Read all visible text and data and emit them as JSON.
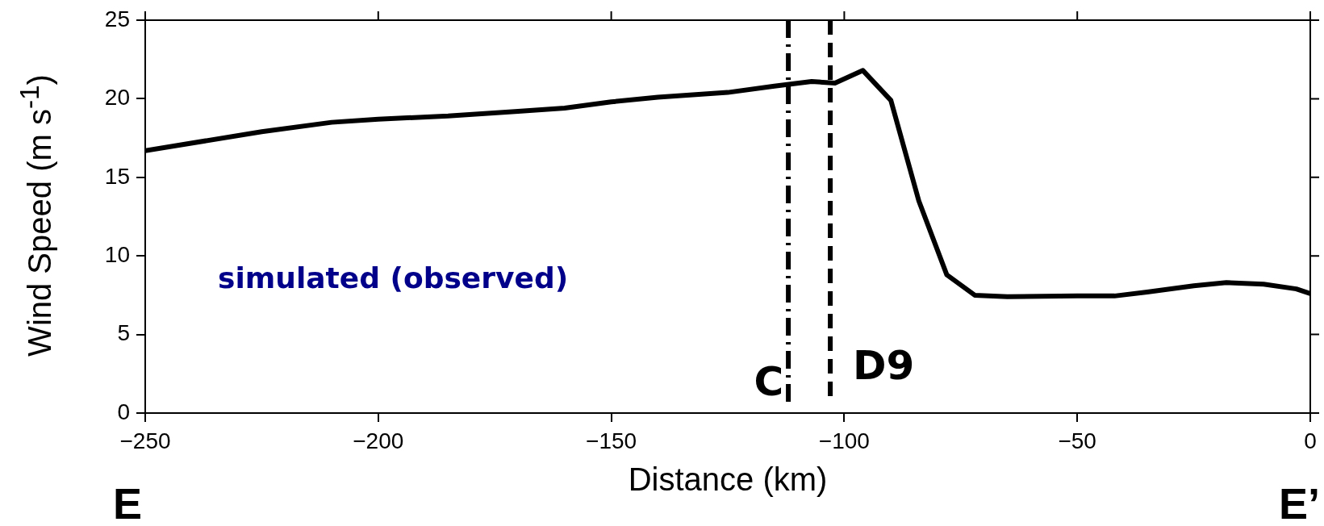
{
  "chart_data": {
    "type": "line",
    "xlabel": "Distance (km)",
    "ylabel": "Wind Speed (m s$^{-1}$)",
    "xlim": [
      -250,
      0
    ],
    "xticks": [
      -250,
      -200,
      -150,
      -100,
      -50,
      0
    ],
    "ylim": [
      0,
      25
    ],
    "yticks": [
      0,
      5,
      10,
      15,
      20,
      25
    ],
    "grid": false,
    "legend": false,
    "marker": "none",
    "line_style": "solid",
    "series": [
      {
        "color": "#000000",
        "x": [
          -250,
          -225,
          -210,
          -200,
          -185,
          -170,
          -160,
          -150,
          -140,
          -125,
          -115,
          -107,
          -102,
          -96,
          -90,
          -84,
          -78,
          -72,
          -65,
          -50,
          -42,
          -35,
          -25,
          -18,
          -10,
          -3,
          0
        ],
        "values": [
          16.7,
          17.9,
          18.5,
          18.7,
          18.9,
          19.2,
          19.4,
          19.8,
          20.1,
          20.4,
          20.8,
          21.1,
          21.0,
          21.8,
          19.9,
          13.5,
          8.8,
          7.5,
          7.4,
          7.45,
          7.45,
          7.7,
          8.1,
          8.3,
          8.2,
          7.9,
          7.6
        ]
      }
    ],
    "ref_lines": [
      {
        "axis": "x",
        "value": -112,
        "label": "C",
        "color": "#000000",
        "line_style": "dashdot"
      },
      {
        "axis": "x",
        "value": -103,
        "label": "D9",
        "color": "#000000",
        "line_style": "dashed"
      }
    ],
    "annotations": [
      "simulated (observed)",
      "E",
      "E’"
    ]
  }
}
